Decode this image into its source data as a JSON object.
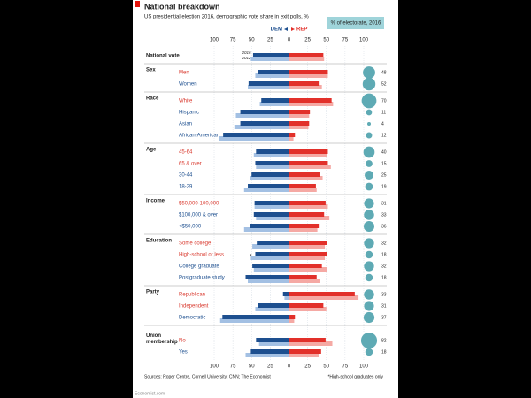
{
  "chart_data": {
    "type": "diverging-bar",
    "title": "National breakdown",
    "subtitle": "US presidential election 2016, demographic vote share in exit polls, %",
    "legend": {
      "dem": "DEM",
      "rep": "REP",
      "electorate": "% of electorate, 2016"
    },
    "series_labels": [
      "2016",
      "2012"
    ],
    "colors": {
      "dem_2016": "#1d4f8f",
      "dem_2012": "#a3c0e3",
      "rep_2016": "#e2302a",
      "rep_2012": "#f5a9a4",
      "dem_label": "#1d4f8f",
      "rep_label": "#d93a2f",
      "bubble": "#5eaab4"
    },
    "xlim": [
      -100,
      100
    ],
    "xticks": [
      {
        "value": -100,
        "label": "100"
      },
      {
        "value": -75,
        "label": "75"
      },
      {
        "value": -50,
        "label": "50"
      },
      {
        "value": -25,
        "label": "25"
      },
      0,
      25,
      50,
      75,
      100
    ],
    "national": {
      "label": "National vote",
      "dem_2016": 48,
      "dem_2012": 51,
      "rep_2016": 46,
      "rep_2012": 47
    },
    "groups": [
      {
        "name": "Sex",
        "rows": [
          {
            "label": "Men",
            "winner": "rep",
            "dem_2016": 41,
            "dem_2012": 45,
            "rep_2016": 52,
            "rep_2012": 52,
            "electorate": 48
          },
          {
            "label": "Women",
            "winner": "dem",
            "dem_2016": 54,
            "dem_2012": 55,
            "rep_2016": 41,
            "rep_2012": 44,
            "electorate": 52
          }
        ]
      },
      {
        "name": "Race",
        "rows": [
          {
            "label": "White",
            "winner": "rep",
            "dem_2016": 37,
            "dem_2012": 39,
            "rep_2016": 57,
            "rep_2012": 59,
            "electorate": 70
          },
          {
            "label": "Hispanic",
            "winner": "dem",
            "dem_2016": 65,
            "dem_2012": 71,
            "rep_2016": 28,
            "rep_2012": 27,
            "electorate": 11
          },
          {
            "label": "Asian",
            "winner": "dem",
            "dem_2016": 65,
            "dem_2012": 73,
            "rep_2016": 27,
            "rep_2012": 26,
            "electorate": 4
          },
          {
            "label": "African-American",
            "winner": "dem",
            "dem_2016": 88,
            "dem_2012": 93,
            "rep_2016": 8,
            "rep_2012": 6,
            "electorate": 12
          }
        ]
      },
      {
        "name": "Age",
        "rows": [
          {
            "label": "45-64",
            "winner": "rep",
            "dem_2016": 44,
            "dem_2012": 47,
            "rep_2016": 52,
            "rep_2012": 51,
            "electorate": 40
          },
          {
            "label": "65 & over",
            "winner": "rep",
            "dem_2016": 45,
            "dem_2012": 44,
            "rep_2016": 52,
            "rep_2012": 56,
            "electorate": 15
          },
          {
            "label": "30-44",
            "winner": "dem",
            "dem_2016": 50,
            "dem_2012": 52,
            "rep_2016": 42,
            "rep_2012": 45,
            "electorate": 25
          },
          {
            "label": "18-29",
            "winner": "dem",
            "dem_2016": 55,
            "dem_2012": 60,
            "rep_2016": 36,
            "rep_2012": 37,
            "electorate": 19
          }
        ]
      },
      {
        "name": "Income",
        "rows": [
          {
            "label": "$50,000-100,000",
            "winner": "rep",
            "dem_2016": 46,
            "dem_2012": 46,
            "rep_2016": 49,
            "rep_2012": 52,
            "electorate": 31
          },
          {
            "label": "$100,000 & over",
            "winner": "dem",
            "dem_2016": 47,
            "dem_2012": 44,
            "rep_2016": 47,
            "rep_2012": 54,
            "electorate": 33
          },
          {
            "label": "<$50,000",
            "winner": "dem",
            "dem_2016": 52,
            "dem_2012": 60,
            "rep_2016": 41,
            "rep_2012": 38,
            "electorate": 36
          }
        ]
      },
      {
        "name": "Education",
        "rows": [
          {
            "label": "Some college",
            "winner": "rep",
            "dem_2016": 43,
            "dem_2012": 49,
            "rep_2016": 51,
            "rep_2012": 48,
            "electorate": 32
          },
          {
            "label": "High-school or less",
            "note": "*",
            "winner": "rep",
            "dem_2016": 45,
            "dem_2012": 51,
            "rep_2016": 51,
            "rep_2012": 48,
            "electorate": 18
          },
          {
            "label": "College graduate",
            "winner": "dem",
            "dem_2016": 49,
            "dem_2012": 47,
            "rep_2016": 44,
            "rep_2012": 51,
            "electorate": 32
          },
          {
            "label": "Postgraduate study",
            "winner": "dem",
            "dem_2016": 58,
            "dem_2012": 55,
            "rep_2016": 37,
            "rep_2012": 42,
            "electorate": 18
          }
        ]
      },
      {
        "name": "Party",
        "rows": [
          {
            "label": "Republican",
            "winner": "rep",
            "dem_2016": 8,
            "dem_2012": 6,
            "rep_2016": 88,
            "rep_2012": 93,
            "electorate": 33
          },
          {
            "label": "Independent",
            "winner": "rep",
            "dem_2016": 42,
            "dem_2012": 45,
            "rep_2016": 46,
            "rep_2012": 50,
            "electorate": 31
          },
          {
            "label": "Democratic",
            "winner": "dem",
            "dem_2016": 89,
            "dem_2012": 92,
            "rep_2016": 8,
            "rep_2012": 7,
            "electorate": 37
          }
        ]
      },
      {
        "name": "Union membership",
        "rows": [
          {
            "label": "No",
            "winner": "rep",
            "dem_2016": 44,
            "dem_2012": 40,
            "rep_2016": 49,
            "rep_2012": 58,
            "electorate": 82
          },
          {
            "label": "Yes",
            "winner": "dem",
            "dem_2016": 51,
            "dem_2012": 58,
            "rep_2016": 43,
            "rep_2012": 40,
            "electorate": 18
          }
        ]
      }
    ],
    "source": "Sources: Roper Centre, Cornell University; CNN; The Economist",
    "footnote": "*High-school graduates only",
    "credit": "Economist.com"
  }
}
